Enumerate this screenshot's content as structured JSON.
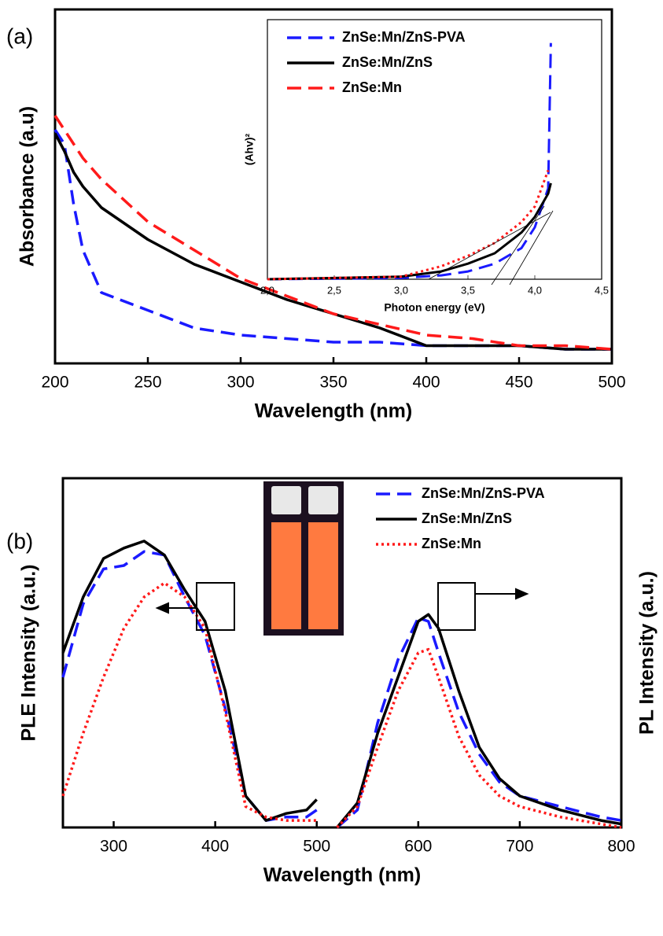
{
  "chart_data": [
    {
      "type": "line",
      "panel_label": "(a)",
      "x_label": "Wavelength (nm)",
      "y_label": "Absorbance (a.u)",
      "xlim": [
        200,
        500
      ],
      "xticks": [
        200,
        250,
        300,
        350,
        400,
        450,
        500
      ],
      "ylim": [
        0,
        1
      ],
      "legend": "upper left",
      "x": [
        200,
        205,
        210,
        215,
        225,
        250,
        275,
        300,
        325,
        350,
        375,
        400,
        425,
        450,
        475,
        500
      ],
      "series": [
        {
          "name": "ZnSe:Mn/ZnS-PVA",
          "color": "#1a1aff",
          "dash": "dashed",
          "values": [
            0.66,
            0.62,
            0.45,
            0.32,
            0.2,
            0.15,
            0.1,
            0.08,
            0.07,
            0.06,
            0.06,
            0.05,
            0.05,
            0.05,
            0.04,
            0.04
          ]
        },
        {
          "name": "ZnSe:Mn/ZnS",
          "color": "#000000",
          "dash": "solid",
          "values": [
            0.65,
            0.6,
            0.54,
            0.5,
            0.44,
            0.35,
            0.28,
            0.23,
            0.18,
            0.14,
            0.1,
            0.05,
            0.05,
            0.05,
            0.04,
            0.04
          ]
        },
        {
          "name": "ZnSe:Mn",
          "color": "#ff1a1a",
          "dash": "dashed",
          "values": [
            0.7,
            0.66,
            0.62,
            0.58,
            0.52,
            0.4,
            0.32,
            0.24,
            0.19,
            0.14,
            0.11,
            0.08,
            0.07,
            0.05,
            0.05,
            0.04
          ]
        }
      ],
      "inset": {
        "type": "line",
        "x_label": "Photon energy (eV)",
        "y_label": "(Ahv)²",
        "xlim": [
          2.0,
          4.5
        ],
        "ylim": [
          0,
          1
        ],
        "xticks": [
          {
            "value": 2.0,
            "label": "2,0"
          },
          {
            "value": 2.5,
            "label": "2,5"
          },
          {
            "value": 3.0,
            "label": "3,0"
          },
          {
            "value": 3.5,
            "label": "3,5"
          },
          {
            "value": 4.0,
            "label": "4,0"
          },
          {
            "value": 4.5,
            "label": "4,5"
          }
        ],
        "x": [
          2.0,
          3.0,
          3.3,
          3.5,
          3.7,
          3.9,
          4.0,
          4.1,
          4.12
        ],
        "series": [
          {
            "name": "ZnSe:Mn/ZnS-PVA",
            "color": "#1a1aff",
            "dash": "dashed",
            "values": [
              0,
              0.005,
              0.015,
              0.03,
              0.06,
              0.12,
              0.2,
              0.35,
              0.91
            ]
          },
          {
            "name": "ZnSe:Mn/ZnS",
            "color": "#000000",
            "dash": "solid",
            "values": [
              0,
              0.01,
              0.03,
              0.06,
              0.1,
              0.18,
              0.24,
              0.33,
              0.37
            ]
          },
          {
            "name": "ZnSe:Mn",
            "color": "#ff1a1a",
            "dash": "dotted",
            "values": [
              0,
              0.01,
              0.05,
              0.09,
              0.14,
              0.22,
              0.28,
              0.42,
              null
            ]
          }
        ]
      }
    },
    {
      "type": "line",
      "panel_label": "(b)",
      "x_label": "Wavelength (nm)",
      "y_label": "PLE Intensity (a.u.)",
      "y2_label": "PL Intensity (a.u.)",
      "xlim": [
        250,
        800
      ],
      "xticks": [
        300,
        400,
        500,
        600,
        700,
        800
      ],
      "ylim": [
        0,
        1
      ],
      "legend": "upper right",
      "x": [
        250,
        270,
        290,
        310,
        330,
        350,
        370,
        390,
        410,
        430,
        450,
        470,
        490,
        500,
        505,
        520,
        540,
        560,
        580,
        600,
        610,
        620,
        640,
        660,
        680,
        700,
        740,
        780,
        800
      ],
      "series": [
        {
          "name": "ZnSe:Mn/ZnS-PVA",
          "color": "#1a1aff",
          "dash": "dashed",
          "values": [
            0.43,
            0.64,
            0.74,
            0.75,
            0.79,
            0.78,
            0.66,
            0.55,
            0.34,
            0.09,
            0.02,
            0.03,
            0.03,
            0.05,
            null,
            0,
            0.05,
            0.3,
            0.48,
            0.6,
            0.59,
            0.5,
            0.33,
            0.21,
            0.13,
            0.09,
            0.06,
            0.03,
            0.02
          ]
        },
        {
          "name": "ZnSe:Mn/ZnS",
          "color": "#000000",
          "dash": "solid",
          "values": [
            0.5,
            0.66,
            0.77,
            0.8,
            0.82,
            0.78,
            0.68,
            0.59,
            0.39,
            0.09,
            0.02,
            0.04,
            0.05,
            0.08,
            null,
            0,
            0.07,
            0.27,
            0.43,
            0.59,
            0.61,
            0.57,
            0.39,
            0.23,
            0.14,
            0.09,
            0.05,
            0.02,
            0.01
          ]
        },
        {
          "name": "ZnSe:Mn",
          "color": "#ff1a1a",
          "dash": "dotted",
          "values": [
            0.09,
            0.27,
            0.43,
            0.57,
            0.66,
            0.7,
            0.66,
            0.57,
            0.33,
            0.06,
            0.03,
            0.02,
            0.02,
            0.02,
            null,
            0,
            0.06,
            0.23,
            0.39,
            0.5,
            0.51,
            0.43,
            0.26,
            0.15,
            0.09,
            0.06,
            0.03,
            0.01,
            0
          ]
        }
      ]
    }
  ]
}
